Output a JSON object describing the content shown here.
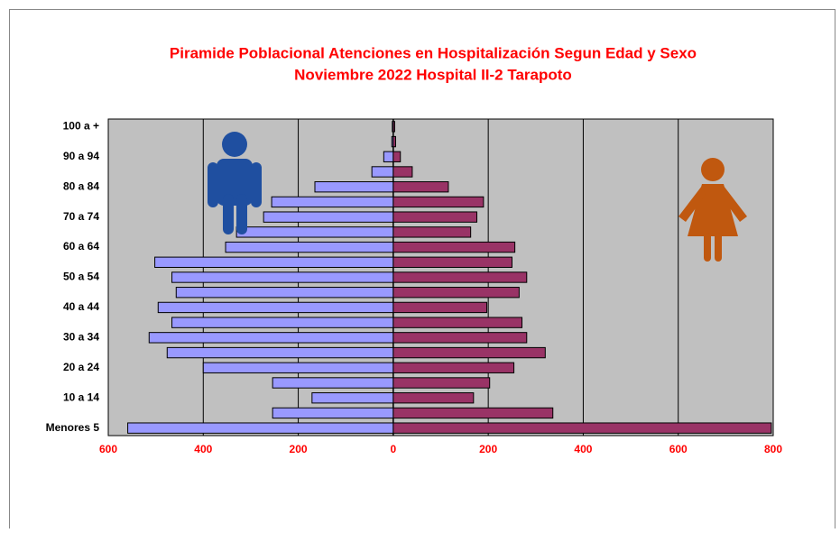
{
  "chart_data": {
    "type": "bar",
    "orientation": "horizontal",
    "title": "Piramide Poblacional  Atenciones en Hospitalización Segun Edad y Sexo",
    "subtitle": "Noviembre 2022  Hospital II-2 Tarapoto",
    "categories": [
      "Menores 5",
      null,
      "10 a 14",
      null,
      "20 a 24",
      null,
      "30 a 34",
      null,
      "40 a 44",
      null,
      "50 a 54",
      null,
      "60 a 64",
      null,
      "70 a 74",
      null,
      "80 a 84",
      null,
      "90 a 94",
      null,
      "100 a +"
    ],
    "series": [
      {
        "color": "#9999ff",
        "values": [
          -559,
          -254,
          -171,
          -254,
          -400,
          -476,
          -514,
          -466,
          -495,
          -457,
          -466,
          -502,
          -353,
          -330,
          -273,
          -256,
          -165,
          -45,
          -20,
          -3,
          -2
        ]
      },
      {
        "color": "#993366",
        "values": [
          796,
          336,
          169,
          203,
          254,
          320,
          281,
          271,
          197,
          265,
          281,
          250,
          256,
          163,
          176,
          190,
          116,
          40,
          15,
          5,
          3
        ]
      }
    ],
    "xlim": [
      -600,
      800
    ],
    "xticks": [
      {
        "value": -600,
        "label": "600"
      },
      {
        "value": -400,
        "label": "400"
      },
      {
        "value": -200,
        "label": "200"
      },
      0,
      200,
      400,
      600,
      800
    ],
    "grid": true,
    "background": "#c0c0c0"
  }
}
